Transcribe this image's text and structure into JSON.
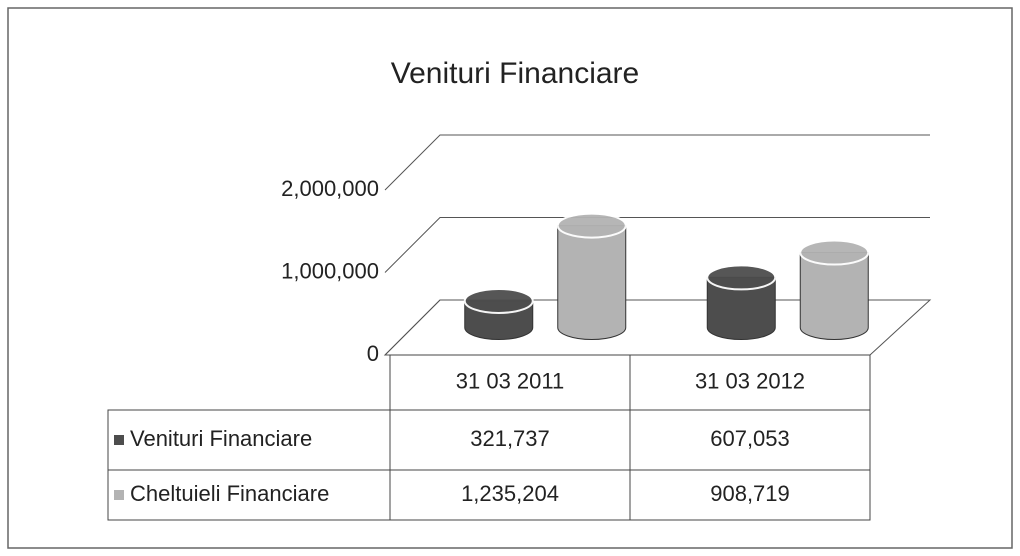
{
  "chart_data": {
    "type": "bar3d",
    "title": "Venituri Financiare",
    "categories": [
      "31 03 2011",
      "31 03 2012"
    ],
    "series": [
      {
        "name": "Venituri Financiare",
        "color": "#4d4d4d",
        "values": [
          321737,
          607053
        ],
        "value_labels": [
          "321,737",
          "607,053"
        ]
      },
      {
        "name": "Cheltuieli Financiare",
        "color": "#b3b3b3",
        "values": [
          1235204,
          908719
        ],
        "value_labels": [
          "1,235,204",
          "908,719"
        ]
      }
    ],
    "ylim": [
      0,
      2000000
    ],
    "yticks": [
      {
        "value": 0,
        "label": "0"
      },
      {
        "value": 1000000,
        "label": "1,000,000"
      },
      {
        "value": 2000000,
        "label": "2,000,000"
      }
    ],
    "grid": true
  }
}
